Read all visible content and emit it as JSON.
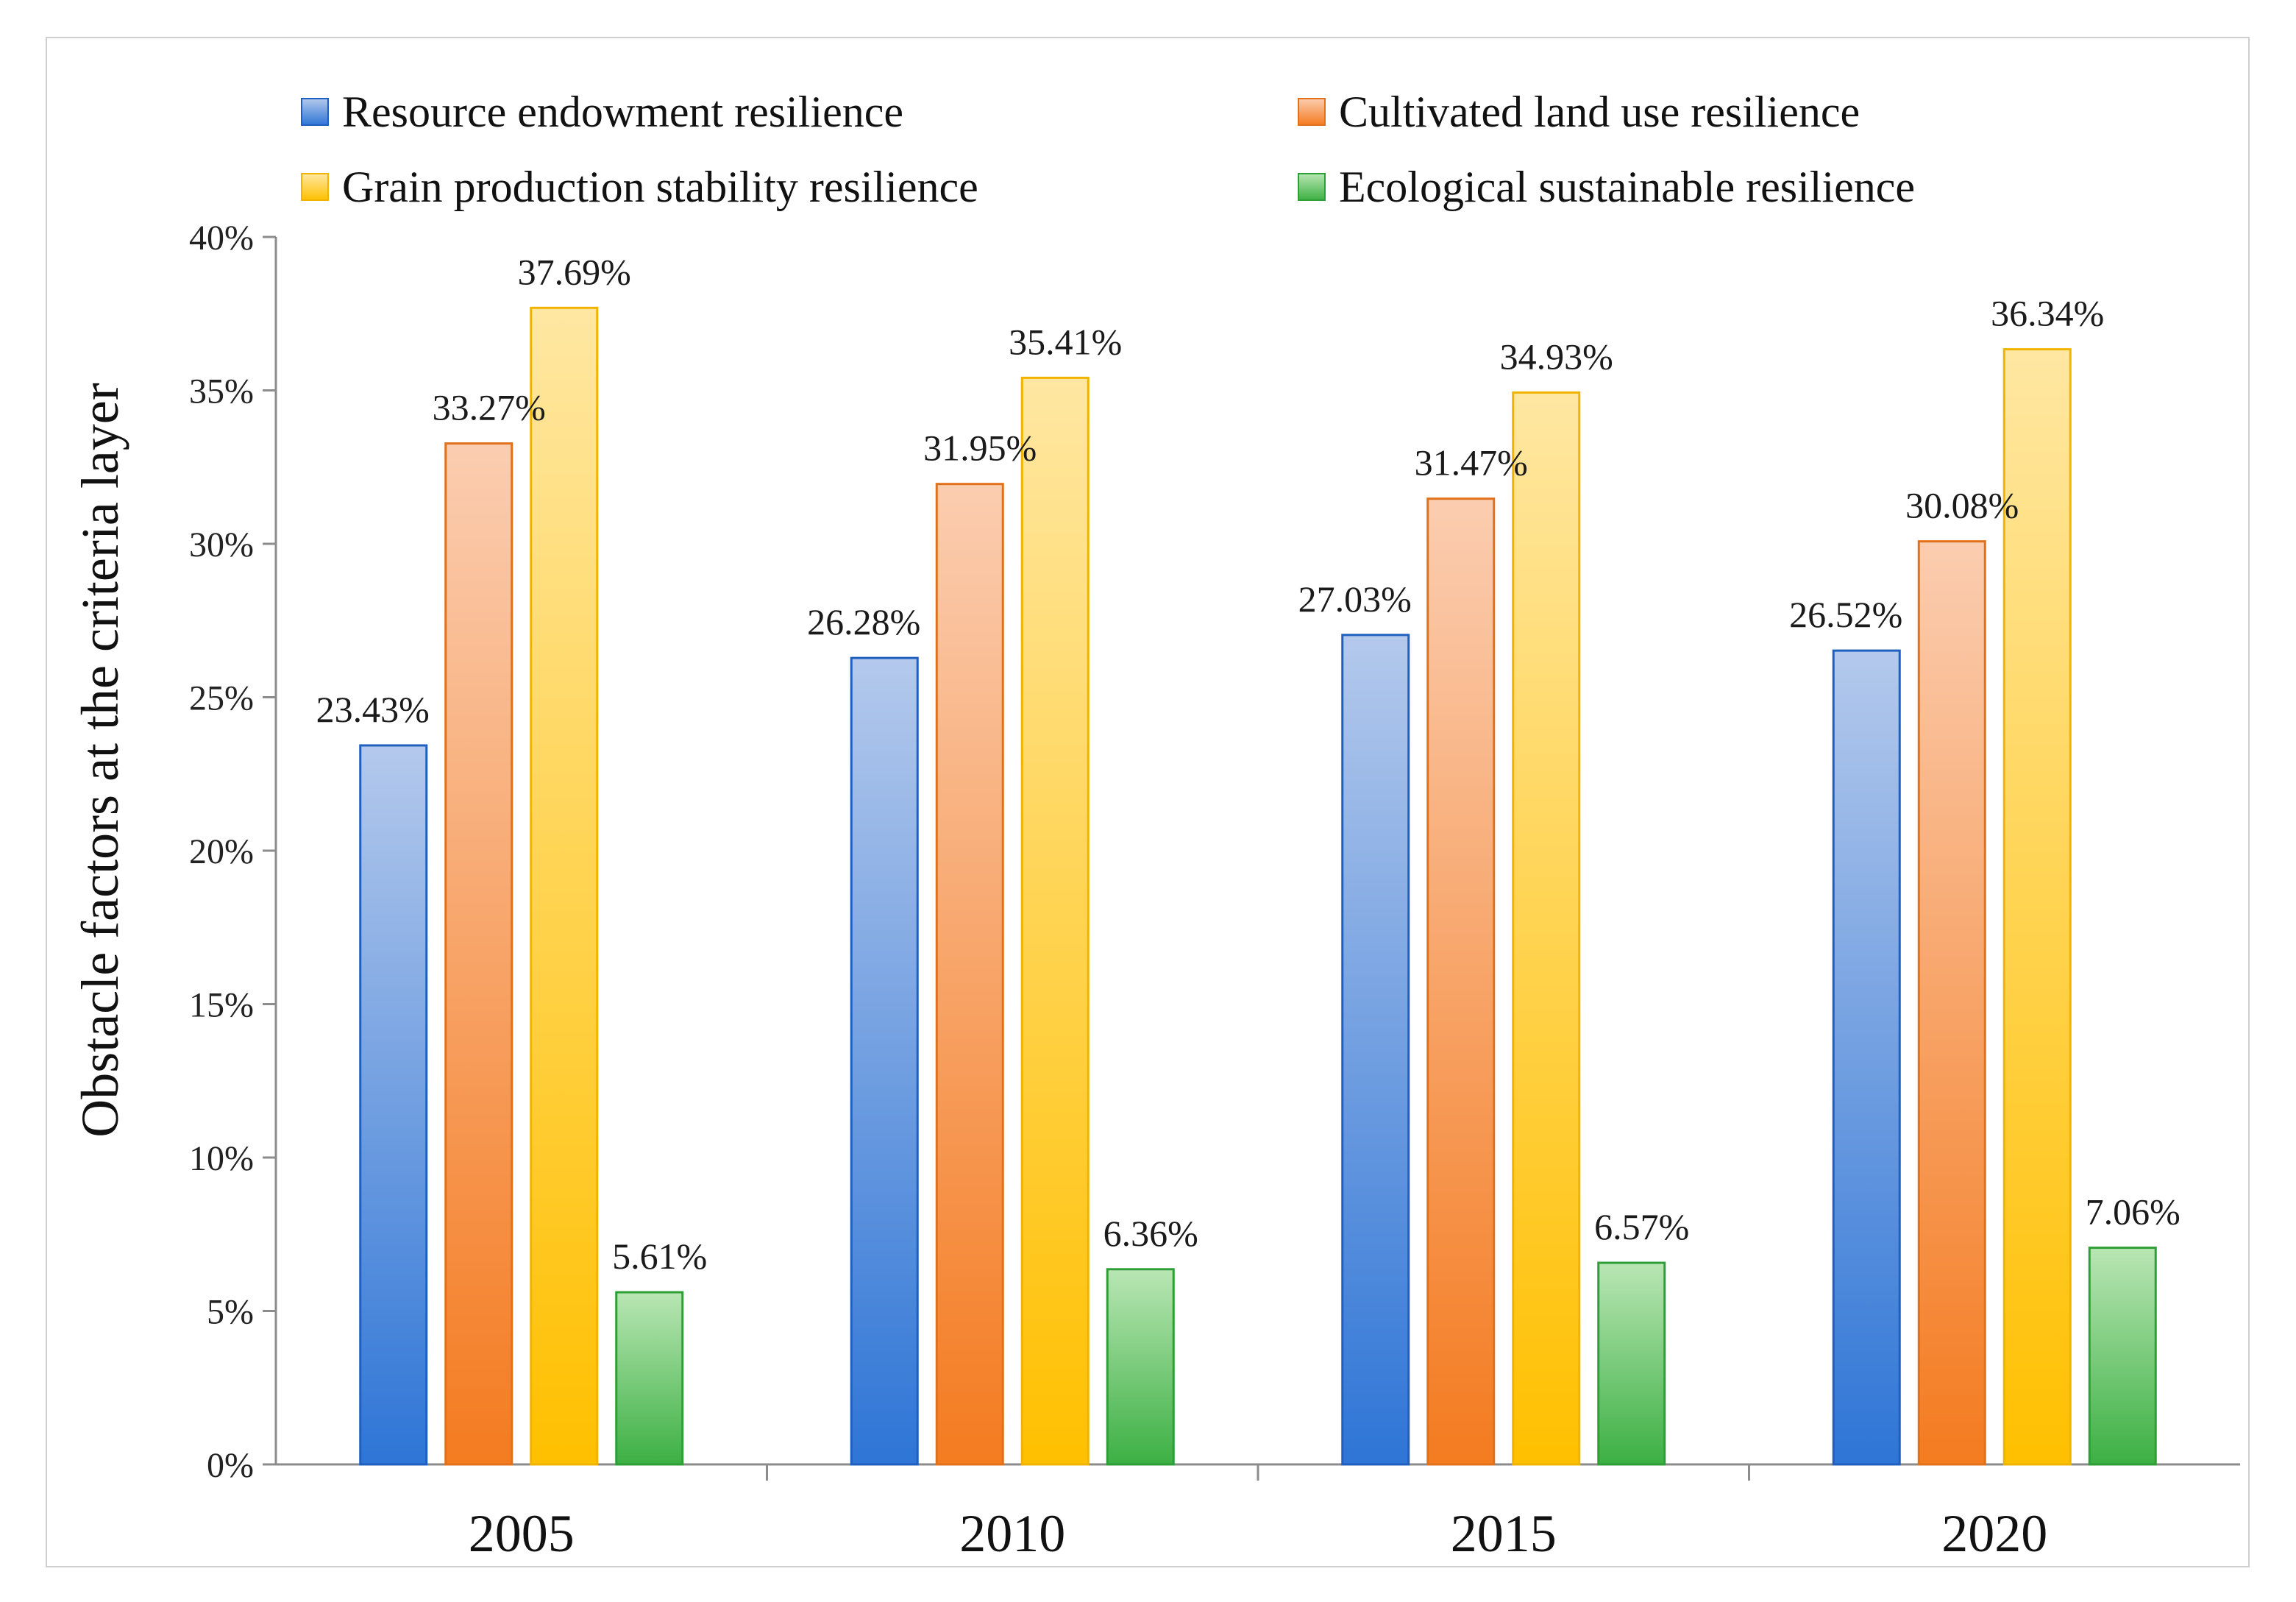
{
  "chart_data": {
    "type": "bar",
    "title": "",
    "xlabel": "",
    "ylabel": "Obstacle factors at the criteria layer",
    "ylim": [
      0,
      40
    ],
    "yticks": [
      0,
      5,
      10,
      15,
      20,
      25,
      30,
      35,
      40
    ],
    "ytick_suffix": "%",
    "grid": false,
    "legend_position": "top",
    "categories": [
      "2005",
      "2010",
      "2015",
      "2020"
    ],
    "series": [
      {
        "name": "Resource endowment resilience",
        "color": "#2e75d6",
        "light_color": "#b4c9ec",
        "edge_color": "#1f5fbf",
        "values": [
          23.43,
          26.28,
          27.03,
          26.52
        ],
        "labels": [
          "23.43%",
          "26.28%",
          "27.03%",
          "26.52%"
        ]
      },
      {
        "name": "Cultivated land use resilience",
        "color": "#f47b20",
        "light_color": "#fbcdb0",
        "edge_color": "#e0701a",
        "values": [
          33.27,
          31.95,
          31.47,
          30.08
        ],
        "labels": [
          "33.27%",
          "31.95%",
          "31.47%",
          "30.08%"
        ]
      },
      {
        "name": "Grain production stability resilience",
        "color": "#ffc000",
        "light_color": "#ffe7a2",
        "edge_color": "#f0b400",
        "values": [
          37.69,
          35.41,
          34.93,
          36.34
        ],
        "labels": [
          "37.69%",
          "35.41%",
          "34.93%",
          "36.34%"
        ]
      },
      {
        "name": "Ecological sustainable resilience",
        "color": "#3cb043",
        "light_color": "#b9e6b4",
        "edge_color": "#2e9e36",
        "values": [
          5.61,
          6.36,
          6.57,
          7.06
        ],
        "labels": [
          "5.61%",
          "6.36%",
          "6.57%",
          "7.06%"
        ]
      }
    ]
  }
}
